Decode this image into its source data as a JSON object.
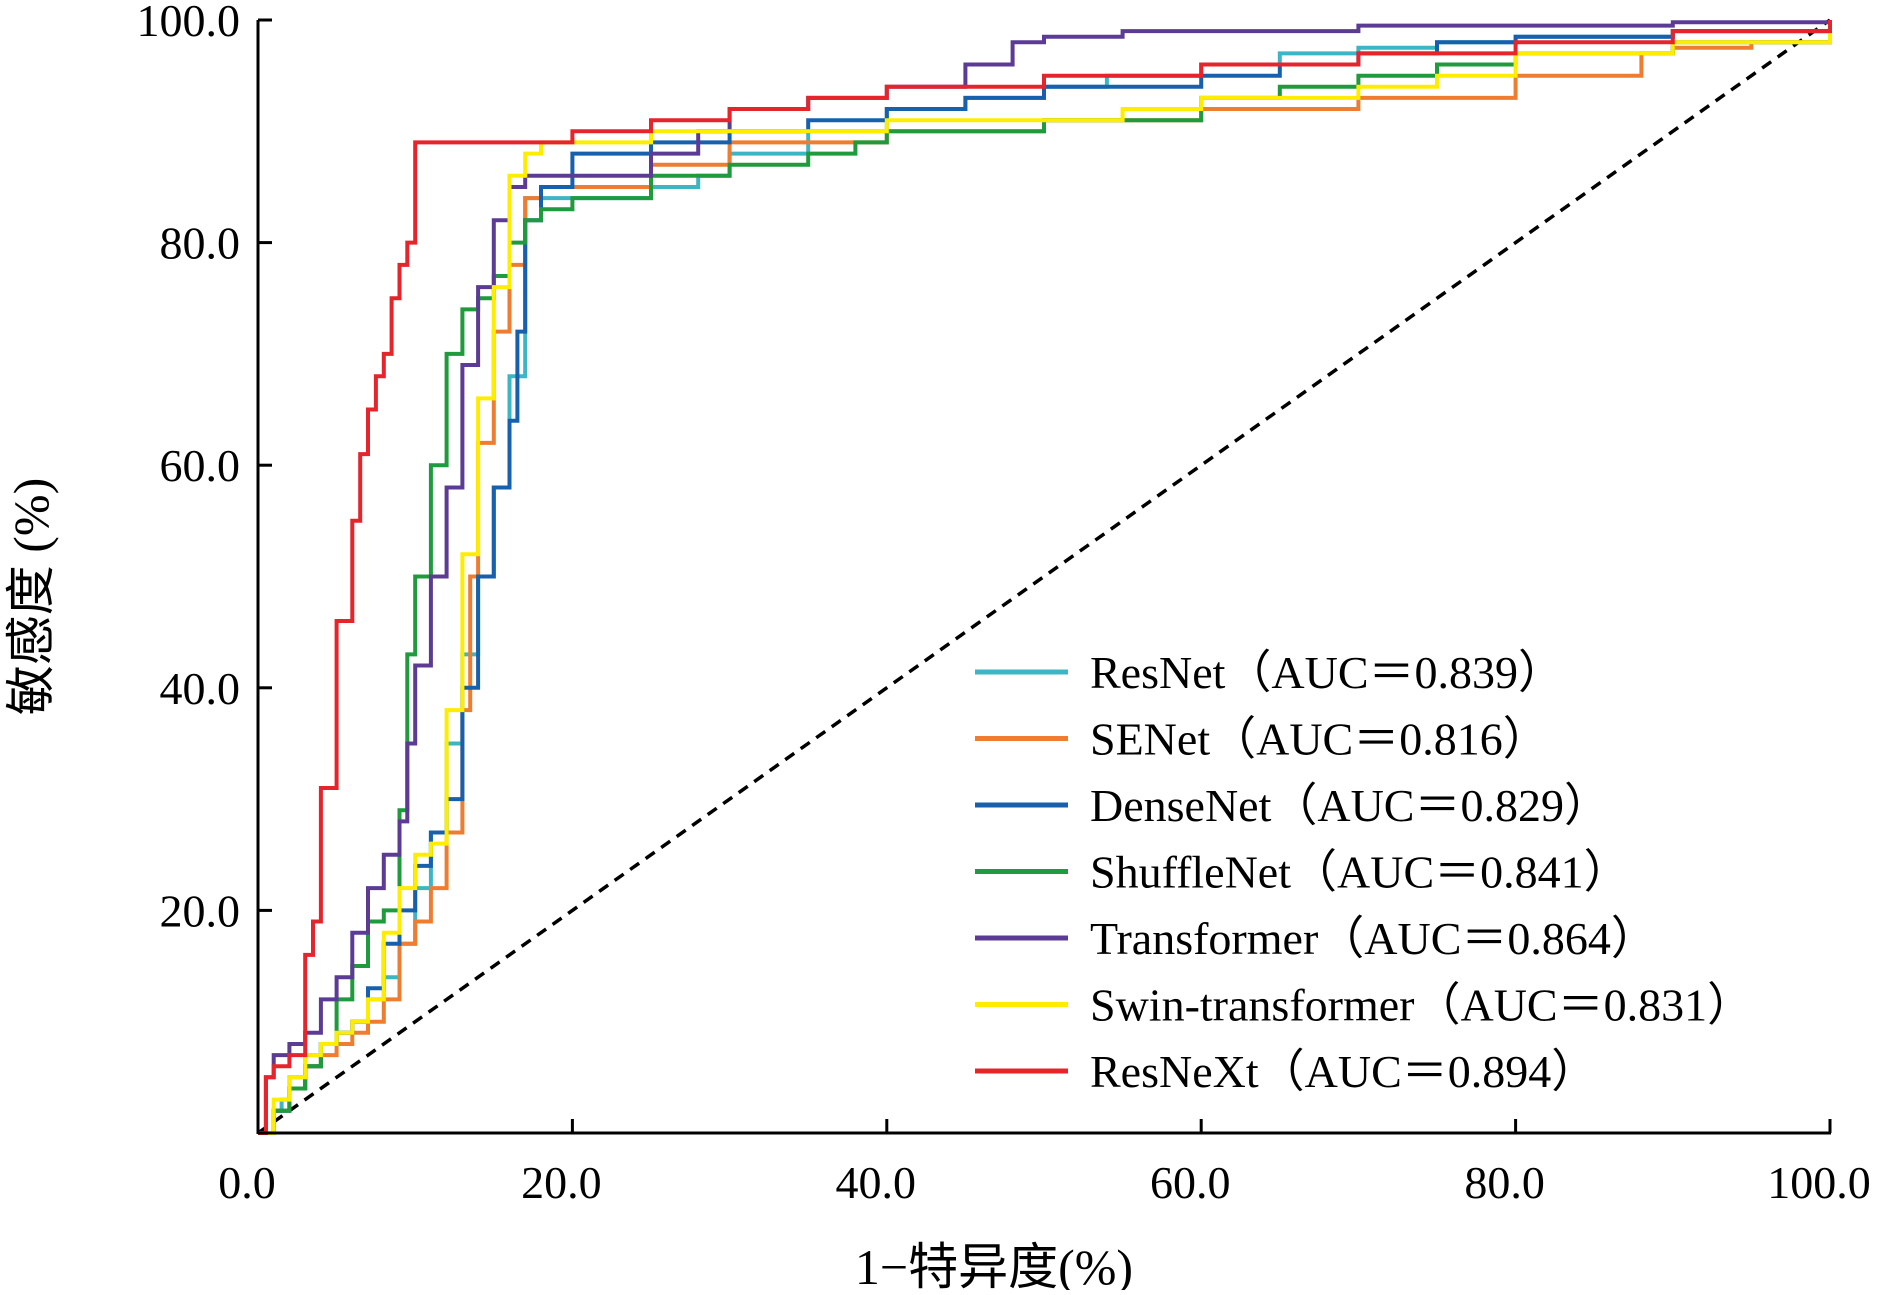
{
  "chart_data": {
    "type": "line",
    "xlabel": "1−特异度(%)",
    "ylabel": "敏感度 (%)",
    "xlim": [
      0,
      100
    ],
    "ylim": [
      0,
      100
    ],
    "x_ticks": [
      "0.0",
      "20.0",
      "40.0",
      "60.0",
      "80.0",
      "100.0"
    ],
    "y_ticks": [
      "20.0",
      "40.0",
      "60.0",
      "80.0",
      "100.0"
    ],
    "grid": false,
    "legend_position": "lower-right",
    "reference_line": {
      "style": "dashed",
      "color": "#000000",
      "x": [
        0,
        100
      ],
      "y": [
        0,
        100
      ]
    },
    "series": [
      {
        "name": "ResNet",
        "legend_label": "ResNet（AUC＝0.839）",
        "color": "#3cb6c4",
        "x": [
          0,
          1,
          1.5,
          2,
          3,
          4,
          5,
          6,
          7,
          8,
          9,
          10,
          11,
          12,
          13,
          14,
          15,
          16,
          17,
          18,
          20,
          22,
          25,
          28,
          30,
          35,
          40,
          45,
          50,
          53,
          54,
          56,
          60,
          65,
          70,
          75,
          80,
          90,
          100
        ],
        "y": [
          0,
          2,
          3,
          5,
          7,
          8,
          9,
          10,
          12,
          14,
          17,
          22,
          27,
          35,
          43,
          50,
          58,
          68,
          84,
          84,
          84,
          84,
          85,
          86,
          88,
          90,
          92,
          93,
          94,
          94,
          95,
          95,
          96,
          97,
          97.5,
          98,
          98.5,
          99,
          100
        ]
      },
      {
        "name": "SENet",
        "legend_label": "SENet（AUC＝0.816）",
        "color": "#ef7d31",
        "x": [
          0,
          1,
          2,
          3,
          4,
          5,
          6,
          7,
          8,
          9,
          10,
          11,
          12,
          13,
          13.5,
          14,
          15,
          16,
          17,
          18,
          20,
          25,
          30,
          40,
          50,
          60,
          70,
          80,
          88,
          90,
          95,
          100
        ],
        "y": [
          0,
          2,
          4,
          6,
          7,
          8,
          9,
          10,
          12,
          17,
          19,
          22,
          27,
          38,
          50,
          62,
          72,
          78,
          84,
          85,
          85,
          87,
          89,
          90,
          91,
          92,
          93,
          95,
          97,
          97.5,
          98,
          100
        ]
      },
      {
        "name": "DenseNet",
        "legend_label": "DenseNet（AUC＝0.829）",
        "color": "#1760ad",
        "x": [
          0,
          1,
          2,
          3,
          4,
          5,
          6,
          7,
          8,
          9,
          10,
          11,
          12,
          13,
          14,
          15,
          16,
          16.5,
          17,
          18,
          20,
          25,
          30,
          35,
          40,
          45,
          50,
          55,
          60,
          65,
          70,
          75,
          80,
          90,
          100
        ],
        "y": [
          0,
          2,
          4,
          6,
          8,
          9,
          10,
          13,
          17,
          20,
          24,
          27,
          30,
          40,
          50,
          58,
          64,
          72,
          82,
          85,
          88,
          89,
          90,
          91,
          92,
          93,
          94,
          94,
          95,
          96,
          97,
          98,
          98.5,
          99,
          100
        ]
      },
      {
        "name": "ShuffleNet",
        "legend_label": "ShuffleNet（AUC＝0.841）",
        "color": "#1f9a3c",
        "x": [
          0,
          1,
          2,
          3,
          4,
          5,
          6,
          7,
          8,
          9,
          9.5,
          10,
          11,
          12,
          13,
          14,
          15,
          16,
          17,
          18,
          20,
          25,
          30,
          35,
          38,
          40,
          50,
          60,
          65,
          70,
          75,
          80,
          90,
          100
        ],
        "y": [
          0,
          2,
          4,
          6,
          8,
          12,
          15,
          19,
          20,
          29,
          43,
          50,
          60,
          70,
          74,
          75,
          77,
          80,
          82,
          83,
          84,
          86,
          87,
          88,
          89,
          90,
          91,
          93,
          94,
          95,
          96,
          97,
          98,
          100
        ]
      },
      {
        "name": "Transformer",
        "legend_label": "Transformer（AUC＝0.864）",
        "color": "#5c3b95",
        "x": [
          0,
          0.5,
          1,
          2,
          3,
          4,
          5,
          6,
          7,
          8,
          9,
          9.5,
          10,
          11,
          12,
          13,
          14,
          15,
          16,
          17,
          20,
          25,
          28,
          30,
          35,
          40,
          45,
          48,
          50,
          55,
          60,
          70,
          80,
          90,
          100
        ],
        "y": [
          0,
          5,
          7,
          8,
          9,
          12,
          14,
          18,
          22,
          25,
          28,
          35,
          42,
          50,
          58,
          69,
          76,
          82,
          85,
          86,
          86,
          88,
          90,
          92,
          93,
          94,
          96,
          98,
          98.5,
          99,
          99,
          99.5,
          99.5,
          99.8,
          100
        ]
      },
      {
        "name": "Swin-transformer",
        "legend_label": "Swin-transformer（AUC＝0.831）",
        "color": "#ffed00",
        "x": [
          0,
          1,
          2,
          3,
          4,
          5,
          6,
          7,
          8,
          9,
          10,
          11,
          12,
          13,
          14,
          15,
          16,
          17,
          18,
          20,
          25,
          30,
          40,
          50,
          55,
          60,
          70,
          75,
          80,
          90,
          100
        ],
        "y": [
          0,
          3,
          5,
          7,
          8,
          9,
          10,
          12,
          18,
          22,
          25,
          26,
          38,
          52,
          66,
          76,
          86,
          88,
          89,
          89,
          90,
          90,
          91,
          91,
          92,
          93,
          94,
          95,
          97,
          98,
          100
        ]
      },
      {
        "name": "ResNeXt",
        "legend_label": "ResNeXt（AUC＝0.894）",
        "color": "#e5242b",
        "x": [
          0,
          0.5,
          1,
          2,
          3,
          3.5,
          4,
          5,
          6,
          6.5,
          7,
          7.5,
          8,
          8.5,
          9,
          9.5,
          10,
          11,
          15,
          20,
          25,
          30,
          35,
          40,
          50,
          60,
          70,
          80,
          90,
          100
        ],
        "y": [
          0,
          5,
          6,
          7,
          16,
          19,
          31,
          46,
          55,
          61,
          65,
          68,
          70,
          75,
          78,
          80,
          89,
          89,
          89,
          90,
          91,
          92,
          93,
          94,
          95,
          96,
          97,
          98,
          99,
          100
        ]
      }
    ]
  }
}
